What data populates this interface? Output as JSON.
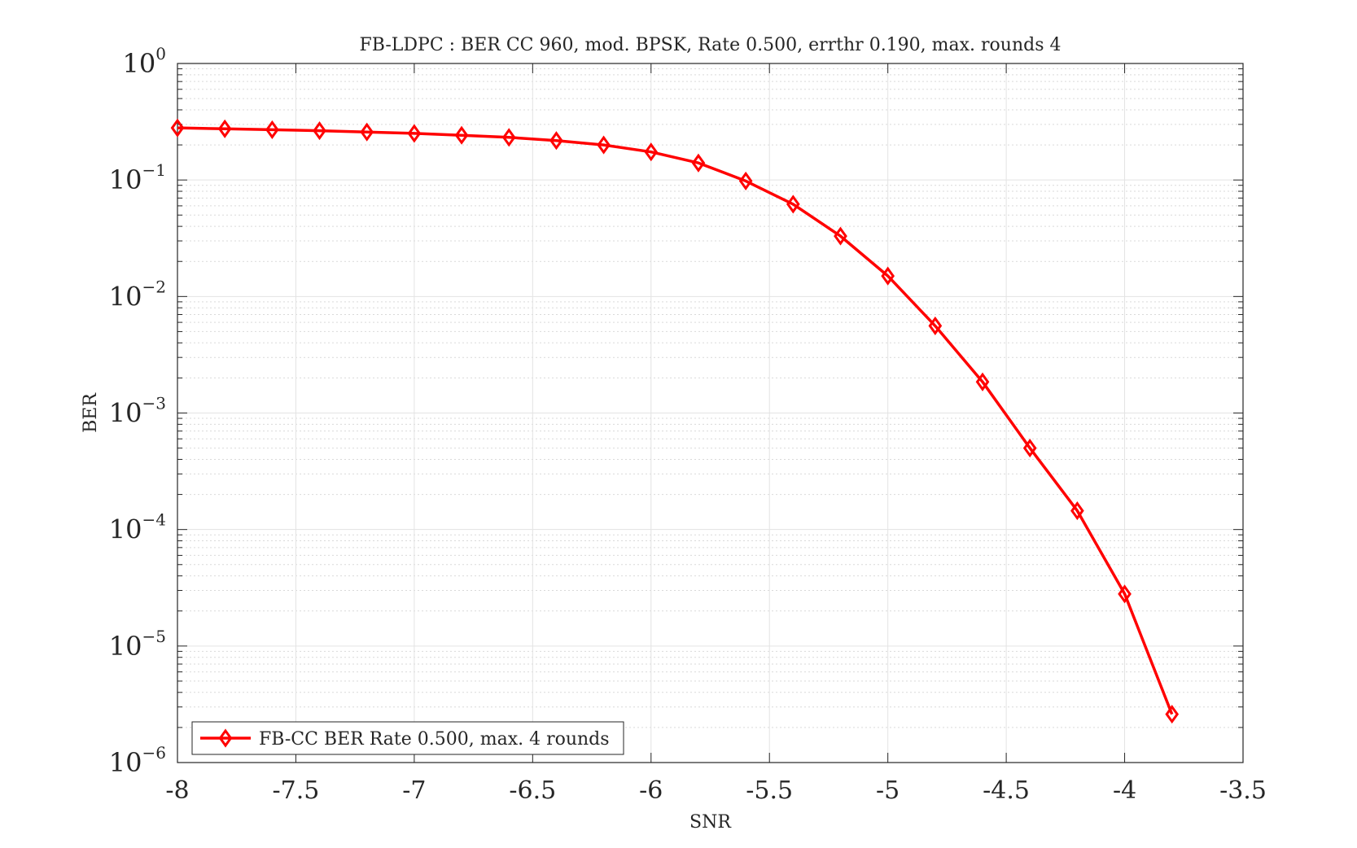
{
  "chart_data": {
    "type": "line",
    "title": "FB-LDPC : BER CC 960, mod. BPSK, Rate 0.500, errthr 0.190, max. rounds 4",
    "xlabel": "SNR",
    "ylabel": "BER",
    "xlim": [
      -8,
      -3.5
    ],
    "ylim": [
      1e-06,
      1
    ],
    "yscale": "log",
    "grid": true,
    "minor_grid": true,
    "legend_position": "bottom-left",
    "x_ticks": [
      "-8",
      "-7.5",
      "-7",
      "-6.5",
      "-6",
      "-5.5",
      "-5",
      "-4.5",
      "-4",
      "-3.5"
    ],
    "x_tick_values": [
      -8,
      -7.5,
      -7,
      -6.5,
      -6,
      -5.5,
      -5,
      -4.5,
      -4,
      -3.5
    ],
    "y_ticks": [
      {
        "base": "10",
        "exp": "0",
        "value": 1
      },
      {
        "base": "10",
        "exp": "−1",
        "value": 0.1
      },
      {
        "base": "10",
        "exp": "−2",
        "value": 0.01
      },
      {
        "base": "10",
        "exp": "−3",
        "value": 0.001
      },
      {
        "base": "10",
        "exp": "−4",
        "value": 0.0001
      },
      {
        "base": "10",
        "exp": "−5",
        "value": 1e-05
      },
      {
        "base": "10",
        "exp": "−6",
        "value": 1e-06
      }
    ],
    "series": [
      {
        "name": "FB-CC BER Rate 0.500, max. 4 rounds",
        "color": "#ff0000",
        "marker": "diamond",
        "x": [
          -8,
          -7.8,
          -7.6,
          -7.4,
          -7.2,
          -7,
          -6.8,
          -6.6,
          -6.4,
          -6.2,
          -6,
          -5.8,
          -5.6,
          -5.4,
          -5.2,
          -5,
          -4.8,
          -4.6,
          -4.4,
          -4.2,
          -4,
          -3.8
        ],
        "y": [
          0.28,
          0.275,
          0.27,
          0.265,
          0.258,
          0.251,
          0.242,
          0.232,
          0.218,
          0.2,
          0.174,
          0.14,
          0.098,
          0.062,
          0.033,
          0.015,
          0.0056,
          0.00185,
          0.0005,
          0.000145,
          2.8e-05,
          2.6e-06
        ]
      }
    ]
  }
}
